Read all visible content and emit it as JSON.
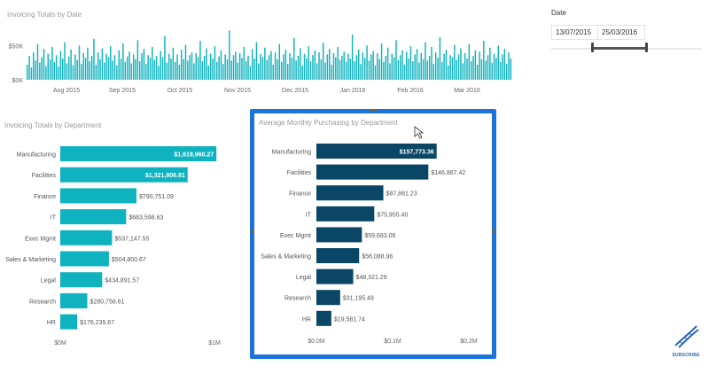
{
  "timeline": {
    "title": "Invoicing Totals by Date",
    "y_ticks": [
      "$50K",
      "$0K"
    ],
    "x_ticks": [
      "Aug 2015",
      "Sep 2015",
      "Oct 2015",
      "Nov 2015",
      "Dec 2015",
      "Jan 2016",
      "Feb 2016",
      "Mar 2016"
    ]
  },
  "slicer": {
    "label": "Date",
    "start": "13/07/2015",
    "end": "25/03/2016",
    "range_fraction": [
      0.27,
      0.63
    ]
  },
  "dept_chart": {
    "title": "Invoicing Totals by Department"
  },
  "purchase_chart": {
    "title": "Average Monthly Purchasing by Department"
  },
  "subscribe": {
    "label": "SUBSCRIBE"
  },
  "colors": {
    "teal": "#0fb3bf",
    "navy": "#0a4766",
    "frame": "#1a73d9"
  },
  "chart_data": [
    {
      "type": "bar",
      "title": "Invoicing Totals by Date",
      "x_range": [
        "2015-07-13",
        "2016-03-25"
      ],
      "ylim": [
        0,
        70000
      ],
      "y_ticks": [
        0,
        50000
      ],
      "values": [
        22000,
        35000,
        18000,
        40000,
        28000,
        52000,
        25000,
        33000,
        45000,
        20000,
        38000,
        30000,
        48000,
        26000,
        36000,
        19000,
        42000,
        31000,
        55000,
        24000,
        34000,
        44000,
        21000,
        37000,
        29000,
        50000,
        23000,
        39000,
        32000,
        47000,
        27000,
        35000,
        60000,
        22000,
        40000,
        30000,
        46000,
        25000,
        38000,
        33000,
        49000,
        28000,
        36000,
        21000,
        43000,
        31000,
        53000,
        26000,
        34000,
        41000,
        24000,
        37000,
        30000,
        58000,
        27000,
        39000,
        45000,
        23000,
        36000,
        32000,
        48000,
        29000,
        35000,
        20000,
        42000,
        33000,
        64000,
        25000,
        38000,
        31000,
        47000,
        26000,
        37000,
        22000,
        44000,
        30000,
        51000,
        28000,
        36000,
        40000,
        24000,
        39000,
        33000,
        57000,
        27000,
        35000,
        46000,
        21000,
        38000,
        31000,
        49000,
        26000,
        34000,
        43000,
        23000,
        37000,
        30000,
        72000,
        28000,
        36000,
        41000,
        25000,
        39000,
        32000,
        48000,
        27000,
        35000,
        20000,
        45000,
        31000,
        55000,
        24000,
        38000,
        33000,
        47000,
        29000,
        36000,
        42000,
        22000,
        40000,
        30000,
        52000,
        26000,
        37000,
        44000,
        23000,
        39000,
        32000,
        61000,
        28000,
        35000,
        46000,
        21000,
        38000,
        31000,
        49000,
        27000,
        36000,
        43000,
        24000,
        40000,
        30000,
        54000,
        25000,
        37000,
        45000,
        22000,
        39000,
        33000,
        48000,
        29000,
        35000,
        41000,
        26000,
        38000,
        31000,
        66000,
        27000,
        36000,
        44000,
        23000,
        40000,
        32000,
        50000,
        28000,
        37000,
        42000,
        21000,
        39000,
        30000,
        53000,
        26000,
        35000,
        47000,
        24000,
        38000,
        33000,
        58000,
        29000,
        36000,
        43000,
        22000,
        41000,
        31000,
        49000,
        27000,
        37000,
        45000,
        25000,
        39000,
        30000,
        55000,
        28000,
        35000,
        48000,
        23000,
        40000,
        32000,
        62000,
        26000,
        38000,
        44000,
        21000,
        36000,
        33000,
        51000,
        29000,
        37000,
        46000,
        24000,
        39000,
        31000,
        52000,
        27000,
        35000,
        43000,
        22000,
        41000,
        30000,
        57000,
        28000,
        36000,
        47000,
        25000,
        38000,
        32000,
        50000,
        26000,
        37000,
        45000,
        23000,
        40000,
        31000
      ],
      "x_tick_labels": [
        "Aug 2015",
        "Sep 2015",
        "Oct 2015",
        "Nov 2015",
        "Dec 2015",
        "Jan 2016",
        "Feb 2016",
        "Mar 2016"
      ]
    },
    {
      "type": "bar",
      "orientation": "horizontal",
      "title": "Invoicing Totals by Department",
      "categories": [
        "Manufacturing",
        "Facilities",
        "Finance",
        "IT",
        "Exec Mgmt",
        "Sales & Marketing",
        "Legal",
        "Research",
        "HR"
      ],
      "values": [
        1619960.27,
        1321806.81,
        790751.09,
        683598.63,
        537147.55,
        504800.67,
        434891.57,
        280758.61,
        176235.67
      ],
      "value_labels": [
        "$1,619,960.27",
        "$1,321,806.81",
        "$790,751.09",
        "$683,598.63",
        "$537,147.55",
        "$504,800.67",
        "$434,891.57",
        "$280,758.61",
        "$176,235.67"
      ],
      "label_inside": [
        true,
        true,
        false,
        false,
        false,
        false,
        false,
        false,
        false
      ],
      "x_ticks": [
        "$0M",
        "$1M"
      ],
      "xlim": [
        0,
        1600000
      ],
      "color": "#0fb3bf"
    },
    {
      "type": "bar",
      "orientation": "horizontal",
      "title": "Average Monthly Purchasing by Department",
      "categories": [
        "Manufacturing",
        "Facilities",
        "Finance",
        "IT",
        "Exec Mgmt",
        "Sales & Marketing",
        "Legal",
        "Research",
        "HR"
      ],
      "values": [
        157773.36,
        146867.42,
        87861.23,
        75955.4,
        59683.06,
        56088.96,
        48321.29,
        31195.48,
        19581.74
      ],
      "value_labels": [
        "$157,773.36",
        "$146,867.42",
        "$87,861.23",
        "$75,955.40",
        "$59,683.06",
        "$56,088.96",
        "$48,321.29",
        "$31,195.48",
        "$19,581.74"
      ],
      "label_inside": [
        true,
        false,
        false,
        false,
        false,
        false,
        false,
        false,
        false
      ],
      "x_ticks": [
        "$0.0M",
        "$0.1M",
        "$0.2M"
      ],
      "xlim": [
        0,
        200000
      ],
      "color": "#0a4766"
    }
  ]
}
